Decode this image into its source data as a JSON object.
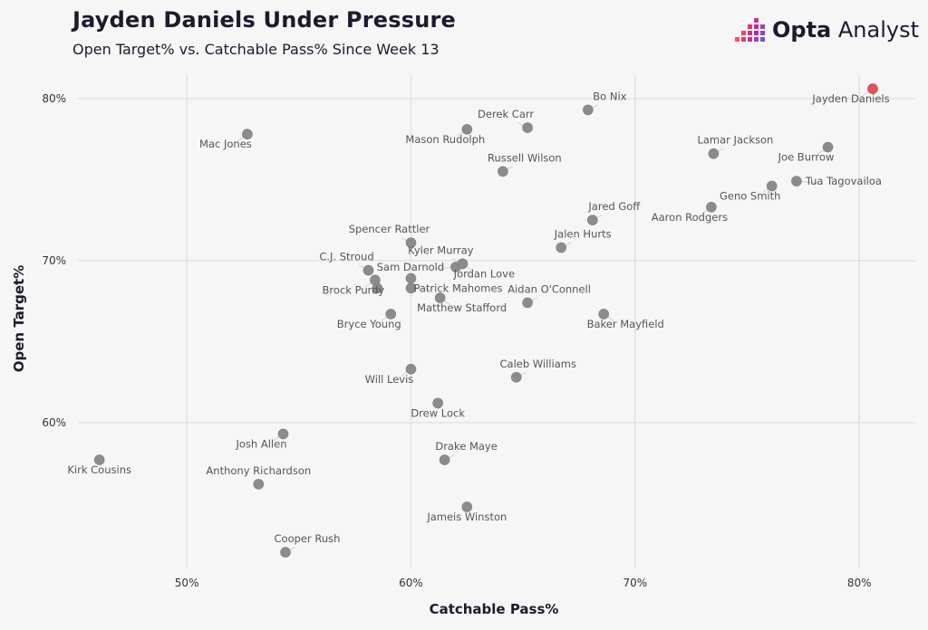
{
  "header": {
    "title": "Jayden Daniels Under Pressure",
    "subtitle": "Open Target% vs. Catchable Pass% Since Week 13"
  },
  "brand": {
    "name_bold": "Opta",
    "name_rest": " Analyst"
  },
  "colors": {
    "point": "#8c8c8c",
    "highlight": "#e0525c",
    "grid": "#e3e3e3",
    "leader": "#d0d0d0"
  },
  "chart_data": {
    "type": "scatter",
    "title": "Jayden Daniels Under Pressure",
    "subtitle": "Open Target% vs. Catchable Pass% Since Week 13",
    "xlabel": "Catchable Pass%",
    "ylabel": "Open Target%",
    "xlim": [
      44.9,
      82.5
    ],
    "ylim": [
      51.0,
      81.5
    ],
    "xticks": [
      {
        "value": 50,
        "label": "50%"
      },
      {
        "value": 60,
        "label": "60%"
      },
      {
        "value": 70,
        "label": "70%"
      },
      {
        "value": 80,
        "label": "80%"
      }
    ],
    "yticks": [
      {
        "value": 60,
        "label": "60%"
      },
      {
        "value": 70,
        "label": "70%"
      },
      {
        "value": 80,
        "label": "80%"
      }
    ],
    "grid": true,
    "highlight": "Jayden Daniels",
    "points": [
      {
        "name": "Jayden Daniels",
        "x": 80.6,
        "y": 80.6,
        "label_pos": "below-left"
      },
      {
        "name": "Bo Nix",
        "x": 67.9,
        "y": 79.3,
        "label_pos": "above-right"
      },
      {
        "name": "Derek Carr",
        "x": 65.2,
        "y": 78.2,
        "label_pos": "above-left"
      },
      {
        "name": "Mason Rudolph",
        "x": 62.5,
        "y": 78.1,
        "label_pos": "below-left"
      },
      {
        "name": "Mac Jones",
        "x": 52.7,
        "y": 77.8,
        "label_pos": "below-left"
      },
      {
        "name": "Lamar Jackson",
        "x": 73.5,
        "y": 76.6,
        "label_pos": "above-right"
      },
      {
        "name": "Joe Burrow",
        "x": 78.6,
        "y": 77.0,
        "label_pos": "below-left"
      },
      {
        "name": "Russell Wilson",
        "x": 64.1,
        "y": 75.5,
        "label_pos": "above-right"
      },
      {
        "name": "Tua Tagovailoa",
        "x": 77.2,
        "y": 74.9,
        "label_pos": "right"
      },
      {
        "name": "Geno Smith",
        "x": 76.1,
        "y": 74.6,
        "label_pos": "below-left"
      },
      {
        "name": "Aaron Rodgers",
        "x": 73.4,
        "y": 73.3,
        "label_pos": "below-left"
      },
      {
        "name": "Jared Goff",
        "x": 68.1,
        "y": 72.5,
        "label_pos": "above-right"
      },
      {
        "name": "Spencer Rattler",
        "x": 60.0,
        "y": 71.1,
        "label_pos": "above-left"
      },
      {
        "name": "Jalen Hurts",
        "x": 66.7,
        "y": 70.8,
        "label_pos": "above-right"
      },
      {
        "name": "Kyler Murray",
        "x": 62.3,
        "y": 69.8,
        "label_pos": "above-left"
      },
      {
        "name": "Sam Darnold",
        "x": 62.0,
        "y": 69.6,
        "label_pos": "left"
      },
      {
        "name": "Jordan Love",
        "x": 62.3,
        "y": 69.8,
        "label_pos": "below-right"
      },
      {
        "name": "C.J. Stroud",
        "x": 58.1,
        "y": 69.4,
        "label_pos": "above-left"
      },
      {
        "name": "Brock Purdy",
        "x": 58.4,
        "y": 68.8,
        "label_pos": "below-left"
      },
      {
        "name": "Brock Purdy (2)",
        "x": 58.5,
        "y": 68.3,
        "label_pos": "none"
      },
      {
        "name": "Sam Darnold (2)",
        "x": 60.0,
        "y": 68.9,
        "label_pos": "none"
      },
      {
        "name": "Patrick Mahomes",
        "x": 60.0,
        "y": 68.3,
        "label_pos": "right"
      },
      {
        "name": "Matthew Stafford",
        "x": 61.3,
        "y": 67.7,
        "label_pos": "below-right"
      },
      {
        "name": "Aidan O'Connell",
        "x": 65.2,
        "y": 67.4,
        "label_pos": "above-right"
      },
      {
        "name": "Bryce Young",
        "x": 59.1,
        "y": 66.7,
        "label_pos": "below-left"
      },
      {
        "name": "Baker Mayfield",
        "x": 68.6,
        "y": 66.7,
        "label_pos": "below-right"
      },
      {
        "name": "Will Levis",
        "x": 60.0,
        "y": 63.3,
        "label_pos": "below-left"
      },
      {
        "name": "Caleb Williams",
        "x": 64.7,
        "y": 62.8,
        "label_pos": "above-right"
      },
      {
        "name": "Drew Lock",
        "x": 61.2,
        "y": 61.2,
        "label_pos": "below"
      },
      {
        "name": "Josh Allen",
        "x": 54.3,
        "y": 59.3,
        "label_pos": "below-left"
      },
      {
        "name": "Drake Maye",
        "x": 61.5,
        "y": 57.7,
        "label_pos": "above-right"
      },
      {
        "name": "Kirk Cousins",
        "x": 46.1,
        "y": 57.7,
        "label_pos": "below"
      },
      {
        "name": "Anthony Richardson",
        "x": 53.2,
        "y": 56.2,
        "label_pos": "above"
      },
      {
        "name": "Jameis Winston",
        "x": 62.5,
        "y": 54.8,
        "label_pos": "below"
      },
      {
        "name": "Cooper Rush",
        "x": 54.4,
        "y": 52.0,
        "label_pos": "above-right"
      }
    ]
  }
}
